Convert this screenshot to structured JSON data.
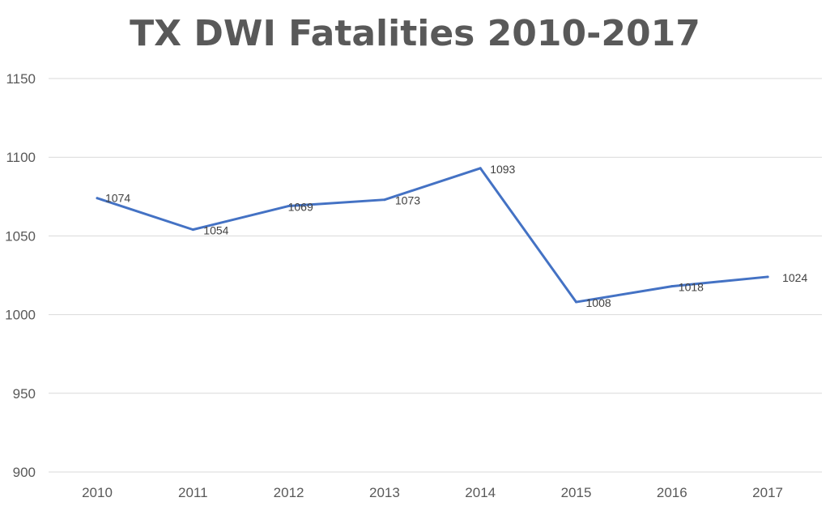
{
  "chart_data": {
    "type": "line",
    "title": "TX DWI Fatalities 2010-2017",
    "xlabel": "",
    "ylabel": "",
    "categories": [
      "2010",
      "2011",
      "2012",
      "2013",
      "2014",
      "2015",
      "2016",
      "2017"
    ],
    "series": [
      {
        "values": [
          1074,
          1054,
          1069,
          1073,
          1093,
          1008,
          1018,
          1024
        ],
        "color": "#4472c4"
      }
    ],
    "ylim": [
      900,
      1150
    ],
    "yticks": [
      "900",
      "950",
      "1000",
      "1050",
      "1100",
      "1150"
    ],
    "data_labels": [
      "1074",
      "1054",
      "1069",
      "1073",
      "1093",
      "1008",
      "1018",
      "1024"
    ],
    "grid": true,
    "legend": "none"
  }
}
